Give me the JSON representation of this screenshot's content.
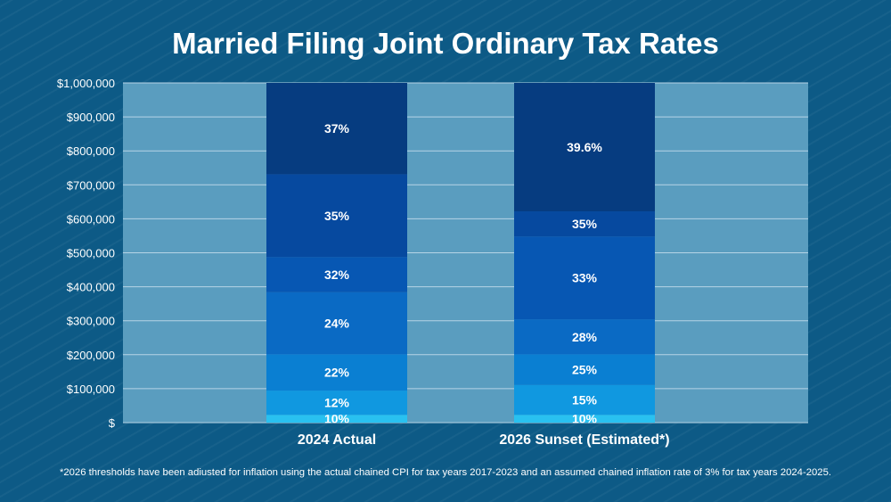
{
  "title": "Married Filing Joint Ordinary Tax Rates",
  "footnote": "*2026 thresholds have been adiusted for inflation using the actual chained CPI for tax years 2017-2023 and an assumed chained inflation rate of 3% for tax years 2024-2025.",
  "colors": {
    "background": "#0d5a86",
    "plot_area": "#5a9dbf",
    "gridline": "#b6d4e6",
    "band_10": "#29c1f0",
    "band_2": "#1098e0",
    "band_3": "#0a7fd2",
    "band_4": "#0a6ac4",
    "band_5": "#0757b3",
    "band_6": "#06499f",
    "band_top": "#063c80"
  },
  "chart_data": {
    "type": "bar",
    "stacked": true,
    "title": "Married Filing Joint Ordinary Tax Rates",
    "xlabel": "",
    "ylabel": "",
    "ylim": [
      0,
      1000000
    ],
    "yticks": [
      0,
      100000,
      200000,
      300000,
      400000,
      500000,
      600000,
      700000,
      800000,
      900000,
      1000000
    ],
    "ytick_labels": [
      "$",
      "$100,000",
      "$200,000",
      "$300,000",
      "$400,000",
      "$500,000",
      "$600,000",
      "$700,000",
      "$800,000",
      "$900,000",
      "$1,000,000"
    ],
    "grid": true,
    "categories": [
      "2024 Actual",
      "2026 Sunset (Estimated*)"
    ],
    "bars": [
      {
        "category": "2024 Actual",
        "brackets": [
          {
            "rate": "10%",
            "from": 0,
            "to": 23000
          },
          {
            "rate": "12%",
            "from": 23000,
            "to": 94300
          },
          {
            "rate": "22%",
            "from": 94300,
            "to": 201050
          },
          {
            "rate": "24%",
            "from": 201050,
            "to": 383900
          },
          {
            "rate": "32%",
            "from": 383900,
            "to": 487450
          },
          {
            "rate": "35%",
            "from": 487450,
            "to": 731200
          },
          {
            "rate": "37%",
            "from": 731200,
            "to": 1000000
          }
        ]
      },
      {
        "category": "2026 Sunset (Estimated*)",
        "brackets": [
          {
            "rate": "10%",
            "from": 0,
            "to": 23000
          },
          {
            "rate": "15%",
            "from": 23000,
            "to": 111000
          },
          {
            "rate": "25%",
            "from": 111000,
            "to": 201000
          },
          {
            "rate": "28%",
            "from": 201000,
            "to": 304000
          },
          {
            "rate": "33%",
            "from": 304000,
            "to": 548000
          },
          {
            "rate": "35%",
            "from": 548000,
            "to": 622000
          },
          {
            "rate": "39.6%",
            "from": 622000,
            "to": 1000000
          }
        ]
      }
    ]
  }
}
